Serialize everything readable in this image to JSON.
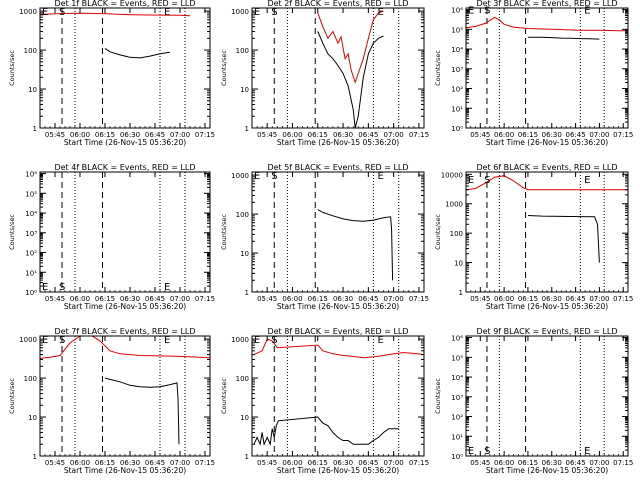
{
  "page": {
    "background": "#ffffff"
  },
  "colors": {
    "events": "#000000",
    "lld": "#dd0000"
  },
  "chart_data": [
    {
      "type": "line",
      "title": "Det 1f BLACK = Events, RED = LLD",
      "xlabel": "Start Time (26-Nov-15 05:36:20)",
      "ylabel": "Counts/sec",
      "yscale": "log",
      "ylim": [
        1,
        1200
      ],
      "xlim": [
        5.6,
        7.3
      ],
      "xtick_values": [
        5.75,
        6.0,
        6.25,
        6.5,
        6.75,
        7.0,
        7.25
      ],
      "xticks": [
        "05:45",
        "06:00",
        "06:15",
        "06:30",
        "06:45",
        "07:00",
        "07:15"
      ],
      "yticks": [
        "1",
        "10",
        "100",
        "1000"
      ],
      "ytick_values": [
        1,
        10,
        100,
        1000
      ],
      "dashed_lines": [
        5.82,
        6.225
      ],
      "dotted_lines": [
        5.95,
        6.8,
        7.05
      ],
      "markers": [
        {
          "label": "E",
          "x": 5.62,
          "y": 1000
        },
        {
          "label": "S",
          "x": 5.79,
          "y": 1000
        },
        {
          "label": "E",
          "x": 6.84,
          "y": 1000
        }
      ],
      "series": [
        {
          "name": "LLD",
          "color": "red",
          "x": [
            5.6,
            5.7,
            5.8,
            5.9,
            6.0,
            6.1,
            6.2,
            6.25,
            6.4,
            6.6,
            6.8,
            7.0,
            7.1
          ],
          "y": [
            820,
            840,
            860,
            870,
            880,
            870,
            860,
            860,
            820,
            800,
            790,
            780,
            760
          ]
        },
        {
          "name": "Events",
          "color": "black",
          "x": [
            6.25,
            6.3,
            6.4,
            6.5,
            6.6,
            6.7,
            6.8,
            6.9
          ],
          "y": [
            110,
            90,
            75,
            65,
            63,
            70,
            80,
            88
          ]
        }
      ]
    },
    {
      "type": "line",
      "title": "Det 2f BLACK = Events, RED = LLD",
      "xlabel": "Start Time (26-Nov-15 05:36:20)",
      "ylabel": "Counts/sec",
      "yscale": "log",
      "ylim": [
        1,
        1200
      ],
      "xlim": [
        5.6,
        7.3
      ],
      "xtick_values": [
        5.75,
        6.0,
        6.25,
        6.5,
        6.75,
        7.0,
        7.25
      ],
      "xticks": [
        "05:45",
        "06:00",
        "06:15",
        "06:30",
        "06:45",
        "07:00",
        "07:15"
      ],
      "yticks": [
        "1",
        "10",
        "100",
        "1000"
      ],
      "ytick_values": [
        1,
        10,
        100,
        1000
      ],
      "dashed_lines": [
        5.82,
        6.225
      ],
      "dotted_lines": [
        5.95,
        6.8,
        7.05
      ],
      "markers": [
        {
          "label": "E",
          "x": 5.62,
          "y": 1000
        },
        {
          "label": "S",
          "x": 5.79,
          "y": 1000
        },
        {
          "label": "E",
          "x": 6.84,
          "y": 1000
        }
      ],
      "series": [
        {
          "name": "LLD",
          "color": "red",
          "x": [
            6.25,
            6.3,
            6.35,
            6.4,
            6.45,
            6.48,
            6.52,
            6.55,
            6.58,
            6.62,
            6.65,
            6.7,
            6.75,
            6.8,
            6.85,
            6.9
          ],
          "y": [
            900,
            400,
            200,
            300,
            150,
            220,
            60,
            80,
            30,
            15,
            25,
            60,
            200,
            600,
            900,
            1000
          ]
        },
        {
          "name": "Events",
          "color": "black",
          "x": [
            6.25,
            6.3,
            6.35,
            6.4,
            6.45,
            6.5,
            6.55,
            6.6,
            6.62,
            6.65,
            6.7,
            6.75,
            6.8,
            6.85,
            6.9
          ],
          "y": [
            300,
            150,
            80,
            60,
            40,
            25,
            12,
            3,
            1,
            2,
            20,
            80,
            150,
            200,
            230
          ]
        }
      ]
    },
    {
      "type": "line",
      "title": "Det 3f BLACK = Events, RED = LLD",
      "xlabel": "Start Time (26-Nov-15 05:36:20)",
      "ylabel": "Counts/sec",
      "yscale": "log",
      "ylim": [
        1,
        1200000
      ],
      "xlim": [
        5.6,
        7.3
      ],
      "xtick_values": [
        5.75,
        6.0,
        6.25,
        6.5,
        6.75,
        7.0,
        7.25
      ],
      "xticks": [
        "05:45",
        "06:00",
        "06:15",
        "06:30",
        "06:45",
        "07:00",
        "07:15"
      ],
      "yticks": [
        "10⁰",
        "10¹",
        "10²",
        "10³",
        "10⁴",
        "10⁵",
        "10⁶"
      ],
      "ytick_values": [
        1,
        10,
        100,
        1000,
        10000,
        100000,
        1000000
      ],
      "dashed_lines": [
        5.82,
        6.225
      ],
      "dotted_lines": [
        5.95,
        6.8,
        7.05
      ],
      "markers": [
        {
          "label": "E",
          "x": 5.62,
          "y": 1000000
        },
        {
          "label": "S",
          "x": 5.79,
          "y": 1000000
        },
        {
          "label": "E",
          "x": 6.84,
          "y": 1000000
        }
      ],
      "series": [
        {
          "name": "LLD",
          "color": "red",
          "x": [
            5.6,
            5.7,
            5.8,
            5.9,
            5.95,
            6.0,
            6.1,
            6.25,
            6.5,
            6.8,
            7.0,
            7.2,
            7.3
          ],
          "y": [
            120000,
            140000,
            200000,
            400000,
            300000,
            180000,
            130000,
            110000,
            100000,
            90000,
            90000,
            85000,
            85000
          ]
        },
        {
          "name": "Events",
          "color": "black",
          "x": [
            6.25,
            6.4,
            6.5,
            6.6,
            6.7,
            6.8,
            6.9,
            7.0
          ],
          "y": [
            40000,
            40000,
            38000,
            36000,
            35000,
            34000,
            33000,
            32000
          ]
        }
      ]
    },
    {
      "type": "line",
      "title": "Det 4f BLACK = Events, RED = LLD",
      "xlabel": "Start Time (26-Nov-15 05:36:20)",
      "ylabel": "Counts/sec",
      "yscale": "log",
      "ylim": [
        1,
        1200000
      ],
      "xlim": [
        5.6,
        7.3
      ],
      "xtick_values": [
        5.75,
        6.0,
        6.25,
        6.5,
        6.75,
        7.0,
        7.25
      ],
      "xticks": [
        "05:45",
        "06:00",
        "06:15",
        "06:30",
        "06:45",
        "07:00",
        "07:15"
      ],
      "yticks": [
        "10⁰",
        "10¹",
        "10²",
        "10³",
        "10⁴",
        "10⁵",
        "10⁶"
      ],
      "ytick_values": [
        1,
        10,
        100,
        1000,
        10000,
        100000,
        1000000
      ],
      "dashed_lines": [
        5.82,
        6.225
      ],
      "dotted_lines": [
        5.95,
        6.8,
        7.05
      ],
      "markers": [
        {
          "label": "E",
          "x": 5.62,
          "y": 2
        },
        {
          "label": "S",
          "x": 5.79,
          "y": 2
        },
        {
          "label": "E",
          "x": 6.84,
          "y": 2
        }
      ],
      "series": []
    },
    {
      "type": "line",
      "title": "Det 5f BLACK = Events, RED = LLD",
      "xlabel": "Start Time (26-Nov-15 05:36:20)",
      "ylabel": "Counts/sec",
      "yscale": "log",
      "ylim": [
        1,
        1200
      ],
      "xlim": [
        5.6,
        7.3
      ],
      "xtick_values": [
        5.75,
        6.0,
        6.25,
        6.5,
        6.75,
        7.0,
        7.25
      ],
      "xticks": [
        "05:45",
        "06:00",
        "06:15",
        "06:30",
        "06:45",
        "07:00",
        "07:15"
      ],
      "yticks": [
        "1",
        "10",
        "100",
        "1000"
      ],
      "ytick_values": [
        1,
        10,
        100,
        1000
      ],
      "dashed_lines": [
        5.82,
        6.225
      ],
      "dotted_lines": [
        5.95,
        6.8,
        7.05
      ],
      "markers": [
        {
          "label": "E",
          "x": 5.62,
          "y": 1000
        },
        {
          "label": "S",
          "x": 5.79,
          "y": 1000
        },
        {
          "label": "E",
          "x": 6.84,
          "y": 1000
        }
      ],
      "series": [
        {
          "name": "Events",
          "color": "black",
          "x": [
            6.25,
            6.3,
            6.4,
            6.5,
            6.6,
            6.7,
            6.8,
            6.9,
            6.97,
            6.98,
            6.99
          ],
          "y": [
            130,
            110,
            90,
            75,
            68,
            65,
            70,
            80,
            85,
            40,
            2
          ]
        }
      ]
    },
    {
      "type": "line",
      "title": "Det 6f BLACK = Events, RED = LLD",
      "xlabel": "Start Time (26-Nov-15 05:36:20)",
      "ylabel": "Counts/sec",
      "yscale": "log",
      "ylim": [
        1,
        12000
      ],
      "xlim": [
        5.6,
        7.3
      ],
      "xtick_values": [
        5.75,
        6.0,
        6.25,
        6.5,
        6.75,
        7.0,
        7.25
      ],
      "xticks": [
        "05:45",
        "06:00",
        "06:15",
        "06:30",
        "06:45",
        "07:00",
        "07:15"
      ],
      "yticks": [
        "1",
        "10",
        "100",
        "1000",
        "10000"
      ],
      "ytick_values": [
        1,
        10,
        100,
        1000,
        10000
      ],
      "dashed_lines": [
        5.82,
        6.225
      ],
      "dotted_lines": [
        5.95,
        6.8,
        7.05
      ],
      "markers": [
        {
          "label": "E",
          "x": 5.62,
          "y": 7000
        },
        {
          "label": "S",
          "x": 5.79,
          "y": 7000
        },
        {
          "label": "E",
          "x": 6.84,
          "y": 7000
        }
      ],
      "series": [
        {
          "name": "LLD",
          "color": "red",
          "x": [
            5.6,
            5.7,
            5.8,
            5.9,
            6.0,
            6.1,
            6.2,
            6.25,
            6.5,
            7.0,
            7.3
          ],
          "y": [
            3000,
            3300,
            5000,
            8000,
            9000,
            6000,
            3500,
            3000,
            3000,
            3000,
            3000
          ]
        },
        {
          "name": "Events",
          "color": "black",
          "x": [
            6.25,
            6.4,
            6.6,
            6.8,
            6.95,
            6.98,
            7.0
          ],
          "y": [
            400,
            380,
            370,
            365,
            360,
            200,
            10
          ]
        }
      ]
    },
    {
      "type": "line",
      "title": "Det 7f BLACK = Events, RED = LLD",
      "xlabel": "Start Time (26-Nov-15 05:36:20)",
      "ylabel": "Counts/sec",
      "yscale": "log",
      "ylim": [
        1,
        1200
      ],
      "xlim": [
        5.6,
        7.3
      ],
      "xtick_values": [
        5.75,
        6.0,
        6.25,
        6.5,
        6.75,
        7.0,
        7.25
      ],
      "xticks": [
        "05:45",
        "06:00",
        "06:15",
        "06:30",
        "06:45",
        "07:00",
        "07:15"
      ],
      "yticks": [
        "1",
        "10",
        "100",
        "1000"
      ],
      "ytick_values": [
        1,
        10,
        100,
        1000
      ],
      "dashed_lines": [
        5.82,
        6.225
      ],
      "dotted_lines": [
        5.95,
        6.8,
        7.05
      ],
      "markers": [
        {
          "label": "E",
          "x": 5.62,
          "y": 1000
        },
        {
          "label": "S",
          "x": 5.79,
          "y": 1000
        },
        {
          "label": "E",
          "x": 6.84,
          "y": 1000
        }
      ],
      "series": [
        {
          "name": "LLD",
          "color": "red",
          "x": [
            5.6,
            5.7,
            5.8,
            5.9,
            6.0,
            6.1,
            6.2,
            6.3,
            6.4,
            6.6,
            6.8,
            7.0,
            7.2,
            7.3
          ],
          "y": [
            320,
            340,
            380,
            800,
            1200,
            1300,
            900,
            500,
            420,
            380,
            370,
            360,
            340,
            330
          ]
        },
        {
          "name": "Events",
          "color": "black",
          "x": [
            6.25,
            6.4,
            6.5,
            6.6,
            6.7,
            6.8,
            6.9,
            6.97,
            6.98,
            6.99
          ],
          "y": [
            100,
            80,
            65,
            60,
            58,
            60,
            68,
            75,
            30,
            2
          ]
        }
      ]
    },
    {
      "type": "line",
      "title": "Det 8f BLACK = Events, RED = LLD",
      "xlabel": "Start Time (26-Nov-15 05:36:20)",
      "ylabel": "Counts/sec",
      "yscale": "log",
      "ylim": [
        1,
        1200
      ],
      "xlim": [
        5.6,
        7.3
      ],
      "xtick_values": [
        5.75,
        6.0,
        6.25,
        6.5,
        6.75,
        7.0,
        7.25
      ],
      "xticks": [
        "05:45",
        "06:00",
        "06:15",
        "06:30",
        "06:45",
        "07:00",
        "07:15"
      ],
      "yticks": [
        "1",
        "10",
        "100",
        "1000"
      ],
      "ytick_values": [
        1,
        10,
        100,
        1000
      ],
      "dashed_lines": [
        5.82,
        6.225
      ],
      "dotted_lines": [
        5.95,
        6.8,
        7.05
      ],
      "markers": [
        {
          "label": "E",
          "x": 5.62,
          "y": 1000
        },
        {
          "label": "S",
          "x": 5.79,
          "y": 1000
        },
        {
          "label": "E",
          "x": 6.84,
          "y": 1000
        }
      ],
      "series": [
        {
          "name": "LLD",
          "color": "red",
          "x": [
            5.62,
            5.7,
            5.75,
            5.8,
            5.85,
            6.25,
            6.3,
            6.4,
            6.5,
            6.6,
            6.7,
            6.8,
            6.9,
            7.0,
            7.1,
            7.2,
            7.3
          ],
          "y": [
            400,
            500,
            1000,
            900,
            600,
            700,
            500,
            420,
            380,
            360,
            330,
            350,
            380,
            420,
            450,
            430,
            400
          ]
        },
        {
          "name": "Events",
          "color": "black",
          "x": [
            5.62,
            5.65,
            5.68,
            5.7,
            5.72,
            5.75,
            5.78,
            5.8,
            5.82,
            5.84,
            5.86,
            6.25,
            6.3,
            6.35,
            6.4,
            6.45,
            6.5,
            6.55,
            6.6,
            6.65,
            6.7,
            6.75,
            6.8,
            6.85,
            6.9,
            6.95,
            7.0,
            7.05
          ],
          "y": [
            2,
            3,
            2,
            4,
            2,
            3,
            2,
            5,
            3,
            6,
            8,
            10,
            7,
            6,
            4,
            3,
            2.5,
            2.5,
            2,
            2,
            2,
            2,
            2.5,
            3,
            4,
            5,
            5,
            5
          ]
        }
      ]
    },
    {
      "type": "line",
      "title": "Det 9f BLACK = Events, RED = LLD",
      "xlabel": "Start Time (26-Nov-15 05:36:20)",
      "ylabel": "Counts/sec",
      "yscale": "log",
      "ylim": [
        1,
        1200000
      ],
      "xlim": [
        5.6,
        7.3
      ],
      "xtick_values": [
        5.75,
        6.0,
        6.25,
        6.5,
        6.75,
        7.0,
        7.25
      ],
      "xticks": [
        "05:45",
        "06:00",
        "06:15",
        "06:30",
        "06:45",
        "07:00",
        "07:15"
      ],
      "yticks": [
        "10⁰",
        "10¹",
        "10²",
        "10³",
        "10⁴",
        "10⁵",
        "10⁶"
      ],
      "ytick_values": [
        1,
        10,
        100,
        1000,
        10000,
        100000,
        1000000
      ],
      "dashed_lines": [
        5.82,
        6.225
      ],
      "dotted_lines": [
        5.95,
        6.8,
        7.05
      ],
      "markers": [
        {
          "label": "E",
          "x": 5.62,
          "y": 2
        },
        {
          "label": "S",
          "x": 5.79,
          "y": 2
        },
        {
          "label": "E",
          "x": 6.84,
          "y": 2
        }
      ],
      "series": []
    }
  ]
}
